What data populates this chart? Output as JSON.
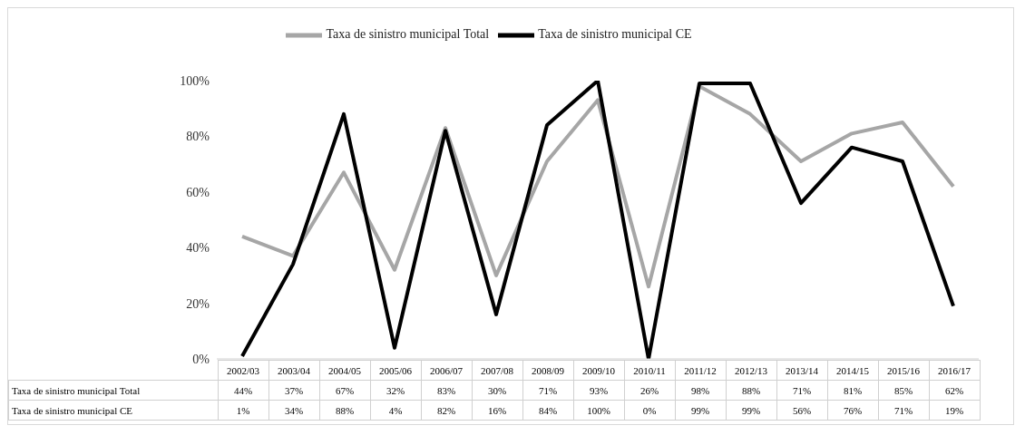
{
  "chart_data": {
    "type": "line",
    "categories": [
      "2002/03",
      "2003/04",
      "2004/05",
      "2005/06",
      "2006/07",
      "2007/08",
      "2008/09",
      "2009/10",
      "2010/11",
      "2011/12",
      "2012/13",
      "2013/14",
      "2014/15",
      "2015/16",
      "2016/17"
    ],
    "series": [
      {
        "name": "Taxa de sinistro municipal Total",
        "color": "#a6a6a6",
        "values": [
          44,
          37,
          67,
          32,
          83,
          30,
          71,
          93,
          26,
          98,
          88,
          71,
          81,
          85,
          62
        ],
        "value_labels": [
          "44%",
          "37%",
          "67%",
          "32%",
          "83%",
          "30%",
          "71%",
          "93%",
          "26%",
          "98%",
          "88%",
          "71%",
          "81%",
          "85%",
          "62%"
        ]
      },
      {
        "name": "Taxa de sinistro municipal CE",
        "color": "#000000",
        "values": [
          1,
          34,
          88,
          4,
          82,
          16,
          84,
          100,
          0,
          99,
          99,
          56,
          76,
          71,
          19
        ],
        "value_labels": [
          "1%",
          "34%",
          "88%",
          "4%",
          "82%",
          "16%",
          "84%",
          "100%",
          "0%",
          "99%",
          "99%",
          "56%",
          "76%",
          "71%",
          "19%"
        ]
      }
    ],
    "ylim": [
      0,
      100
    ],
    "yticks": [
      {
        "value": 0,
        "label": "0%"
      },
      {
        "value": 20,
        "label": "20%"
      },
      {
        "value": 40,
        "label": "40%"
      },
      {
        "value": 60,
        "label": "60%"
      },
      {
        "value": 80,
        "label": "80%"
      },
      {
        "value": 100,
        "label": "100%"
      }
    ],
    "legend": "top",
    "line_style": "solid"
  }
}
